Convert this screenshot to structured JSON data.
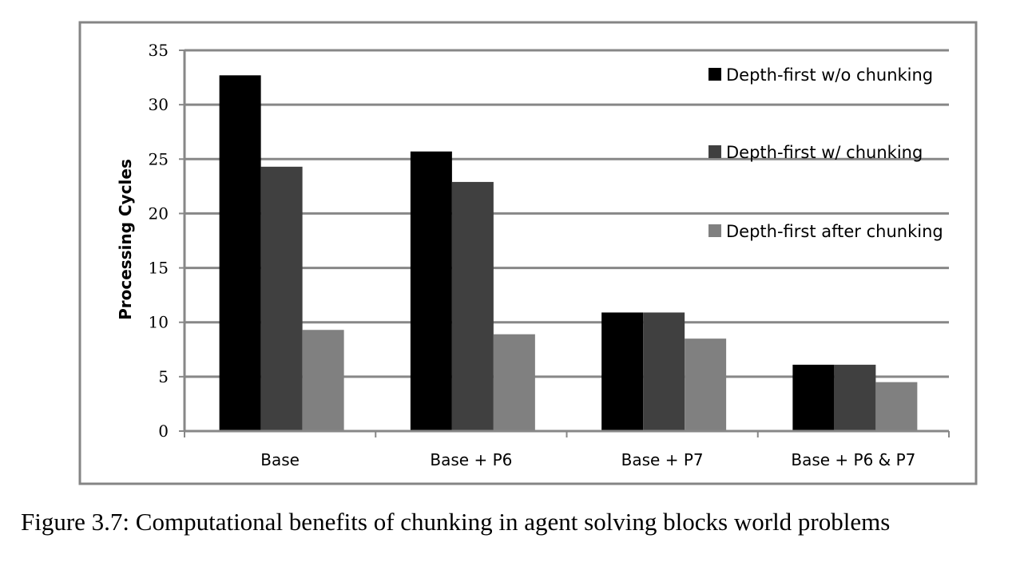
{
  "caption": "Figure 3.7: Computational benefits of chunking in agent solving blocks world problems",
  "chart_data": {
    "type": "bar",
    "title": "",
    "xlabel": "",
    "ylabel": "Processing Cycles",
    "ylim": [
      0,
      35
    ],
    "yticks": [
      0,
      5,
      10,
      15,
      20,
      25,
      30,
      35
    ],
    "grid": true,
    "legend_position": "right",
    "categories": [
      "Base",
      "Base + P6",
      "Base + P7",
      "Base + P6 & P7"
    ],
    "series": [
      {
        "name": "Depth-first w/o chunking",
        "color": "#000000",
        "values": [
          32.7,
          25.7,
          10.9,
          6.1
        ]
      },
      {
        "name": "Depth-first w/ chunking",
        "color": "#404040",
        "values": [
          24.3,
          22.9,
          10.9,
          6.1
        ]
      },
      {
        "name": "Depth-first after chunking",
        "color": "#808080",
        "values": [
          9.3,
          8.9,
          8.5,
          4.5
        ]
      }
    ]
  }
}
